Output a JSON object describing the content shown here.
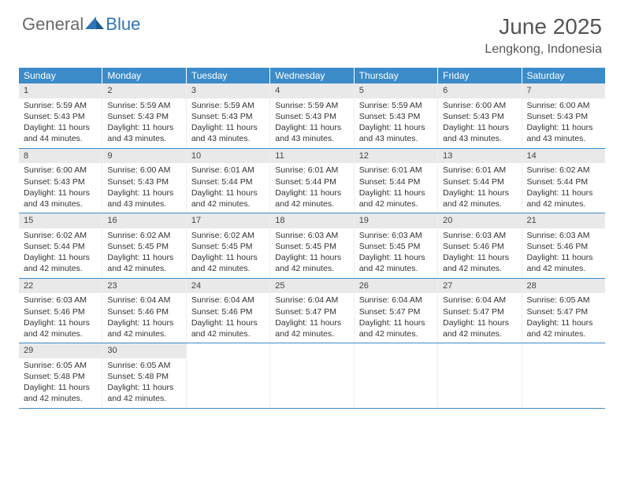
{
  "brand": {
    "text_general": "General",
    "text_blue": "Blue",
    "accent_color": "#2f75b5"
  },
  "title": "June 2025",
  "location": "Lengkong, Indonesia",
  "colors": {
    "header_bg": "#3b8bc9",
    "header_text": "#ffffff",
    "daynum_bg": "#e9e9e9",
    "week_border": "#3b8bc9",
    "text": "#333333"
  },
  "weekdays": [
    "Sunday",
    "Monday",
    "Tuesday",
    "Wednesday",
    "Thursday",
    "Friday",
    "Saturday"
  ],
  "weeks": [
    [
      {
        "n": 1,
        "sr": "5:59 AM",
        "ss": "5:43 PM",
        "dl": "11 hours and 44 minutes."
      },
      {
        "n": 2,
        "sr": "5:59 AM",
        "ss": "5:43 PM",
        "dl": "11 hours and 43 minutes."
      },
      {
        "n": 3,
        "sr": "5:59 AM",
        "ss": "5:43 PM",
        "dl": "11 hours and 43 minutes."
      },
      {
        "n": 4,
        "sr": "5:59 AM",
        "ss": "5:43 PM",
        "dl": "11 hours and 43 minutes."
      },
      {
        "n": 5,
        "sr": "5:59 AM",
        "ss": "5:43 PM",
        "dl": "11 hours and 43 minutes."
      },
      {
        "n": 6,
        "sr": "6:00 AM",
        "ss": "5:43 PM",
        "dl": "11 hours and 43 minutes."
      },
      {
        "n": 7,
        "sr": "6:00 AM",
        "ss": "5:43 PM",
        "dl": "11 hours and 43 minutes."
      }
    ],
    [
      {
        "n": 8,
        "sr": "6:00 AM",
        "ss": "5:43 PM",
        "dl": "11 hours and 43 minutes."
      },
      {
        "n": 9,
        "sr": "6:00 AM",
        "ss": "5:43 PM",
        "dl": "11 hours and 43 minutes."
      },
      {
        "n": 10,
        "sr": "6:01 AM",
        "ss": "5:44 PM",
        "dl": "11 hours and 42 minutes."
      },
      {
        "n": 11,
        "sr": "6:01 AM",
        "ss": "5:44 PM",
        "dl": "11 hours and 42 minutes."
      },
      {
        "n": 12,
        "sr": "6:01 AM",
        "ss": "5:44 PM",
        "dl": "11 hours and 42 minutes."
      },
      {
        "n": 13,
        "sr": "6:01 AM",
        "ss": "5:44 PM",
        "dl": "11 hours and 42 minutes."
      },
      {
        "n": 14,
        "sr": "6:02 AM",
        "ss": "5:44 PM",
        "dl": "11 hours and 42 minutes."
      }
    ],
    [
      {
        "n": 15,
        "sr": "6:02 AM",
        "ss": "5:44 PM",
        "dl": "11 hours and 42 minutes."
      },
      {
        "n": 16,
        "sr": "6:02 AM",
        "ss": "5:45 PM",
        "dl": "11 hours and 42 minutes."
      },
      {
        "n": 17,
        "sr": "6:02 AM",
        "ss": "5:45 PM",
        "dl": "11 hours and 42 minutes."
      },
      {
        "n": 18,
        "sr": "6:03 AM",
        "ss": "5:45 PM",
        "dl": "11 hours and 42 minutes."
      },
      {
        "n": 19,
        "sr": "6:03 AM",
        "ss": "5:45 PM",
        "dl": "11 hours and 42 minutes."
      },
      {
        "n": 20,
        "sr": "6:03 AM",
        "ss": "5:46 PM",
        "dl": "11 hours and 42 minutes."
      },
      {
        "n": 21,
        "sr": "6:03 AM",
        "ss": "5:46 PM",
        "dl": "11 hours and 42 minutes."
      }
    ],
    [
      {
        "n": 22,
        "sr": "6:03 AM",
        "ss": "5:46 PM",
        "dl": "11 hours and 42 minutes."
      },
      {
        "n": 23,
        "sr": "6:04 AM",
        "ss": "5:46 PM",
        "dl": "11 hours and 42 minutes."
      },
      {
        "n": 24,
        "sr": "6:04 AM",
        "ss": "5:46 PM",
        "dl": "11 hours and 42 minutes."
      },
      {
        "n": 25,
        "sr": "6:04 AM",
        "ss": "5:47 PM",
        "dl": "11 hours and 42 minutes."
      },
      {
        "n": 26,
        "sr": "6:04 AM",
        "ss": "5:47 PM",
        "dl": "11 hours and 42 minutes."
      },
      {
        "n": 27,
        "sr": "6:04 AM",
        "ss": "5:47 PM",
        "dl": "11 hours and 42 minutes."
      },
      {
        "n": 28,
        "sr": "6:05 AM",
        "ss": "5:47 PM",
        "dl": "11 hours and 42 minutes."
      }
    ],
    [
      {
        "n": 29,
        "sr": "6:05 AM",
        "ss": "5:48 PM",
        "dl": "11 hours and 42 minutes."
      },
      {
        "n": 30,
        "sr": "6:05 AM",
        "ss": "5:48 PM",
        "dl": "11 hours and 42 minutes."
      },
      null,
      null,
      null,
      null,
      null
    ]
  ],
  "labels": {
    "sunrise": "Sunrise:",
    "sunset": "Sunset:",
    "daylight": "Daylight:"
  }
}
